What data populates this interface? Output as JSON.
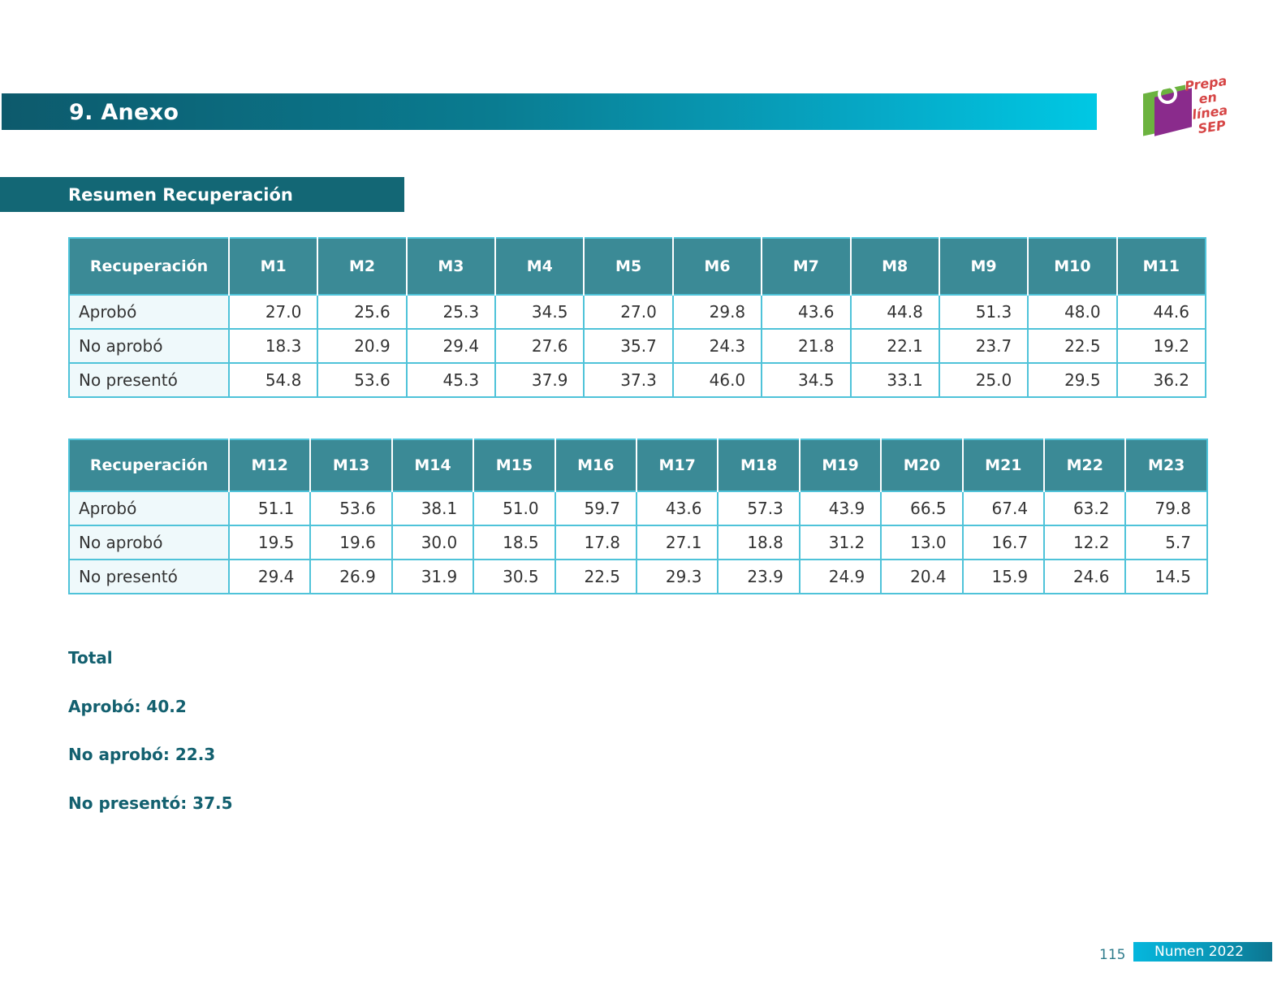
{
  "header": {
    "title": "9. Anexo"
  },
  "logo": {
    "line1": "Prepa en",
    "line2": "línea",
    "line3": "SEP"
  },
  "section": {
    "title": "Resumen Recuperación"
  },
  "table1": {
    "headers": [
      "Recuperación",
      "M1",
      "M2",
      "M3",
      "M4",
      "M5",
      "M6",
      "M7",
      "M8",
      "M9",
      "M10",
      "M11"
    ],
    "rows": [
      [
        "Aprobó",
        "27.0",
        "25.6",
        "25.3",
        "34.5",
        "27.0",
        "29.8",
        "43.6",
        "44.8",
        "51.3",
        "48.0",
        "44.6"
      ],
      [
        "No aprobó",
        "18.3",
        "20.9",
        "29.4",
        "27.6",
        "35.7",
        "24.3",
        "21.8",
        "22.1",
        "23.7",
        "22.5",
        "19.2"
      ],
      [
        "No presentó",
        "54.8",
        "53.6",
        "45.3",
        "37.9",
        "37.3",
        "46.0",
        "34.5",
        "33.1",
        "25.0",
        "29.5",
        "36.2"
      ]
    ]
  },
  "table2": {
    "headers": [
      "Recuperación",
      "M12",
      "M13",
      "M14",
      "M15",
      "M16",
      "M17",
      "M18",
      "M19",
      "M20",
      "M21",
      "M22",
      "M23"
    ],
    "rows": [
      [
        "Aprobó",
        "51.1",
        "53.6",
        "38.1",
        "51.0",
        "59.7",
        "43.6",
        "57.3",
        "43.9",
        "66.5",
        "67.4",
        "63.2",
        "79.8"
      ],
      [
        "No aprobó",
        "19.5",
        "19.6",
        "30.0",
        "18.5",
        "17.8",
        "27.1",
        "18.8",
        "31.2",
        "13.0",
        "16.7",
        "12.2",
        "5.7"
      ],
      [
        "No presentó",
        "29.4",
        "26.9",
        "31.9",
        "30.5",
        "22.5",
        "29.3",
        "23.9",
        "24.9",
        "20.4",
        "15.9",
        "24.6",
        "14.5"
      ]
    ]
  },
  "totals": {
    "heading": "Total",
    "aprobo": "Aprobó: 40.2",
    "no_aprobo": "No aprobó: 22.3",
    "no_presento": "No presentó:  37.5"
  },
  "footer": {
    "page": "115",
    "label": "Numen 2022"
  }
}
